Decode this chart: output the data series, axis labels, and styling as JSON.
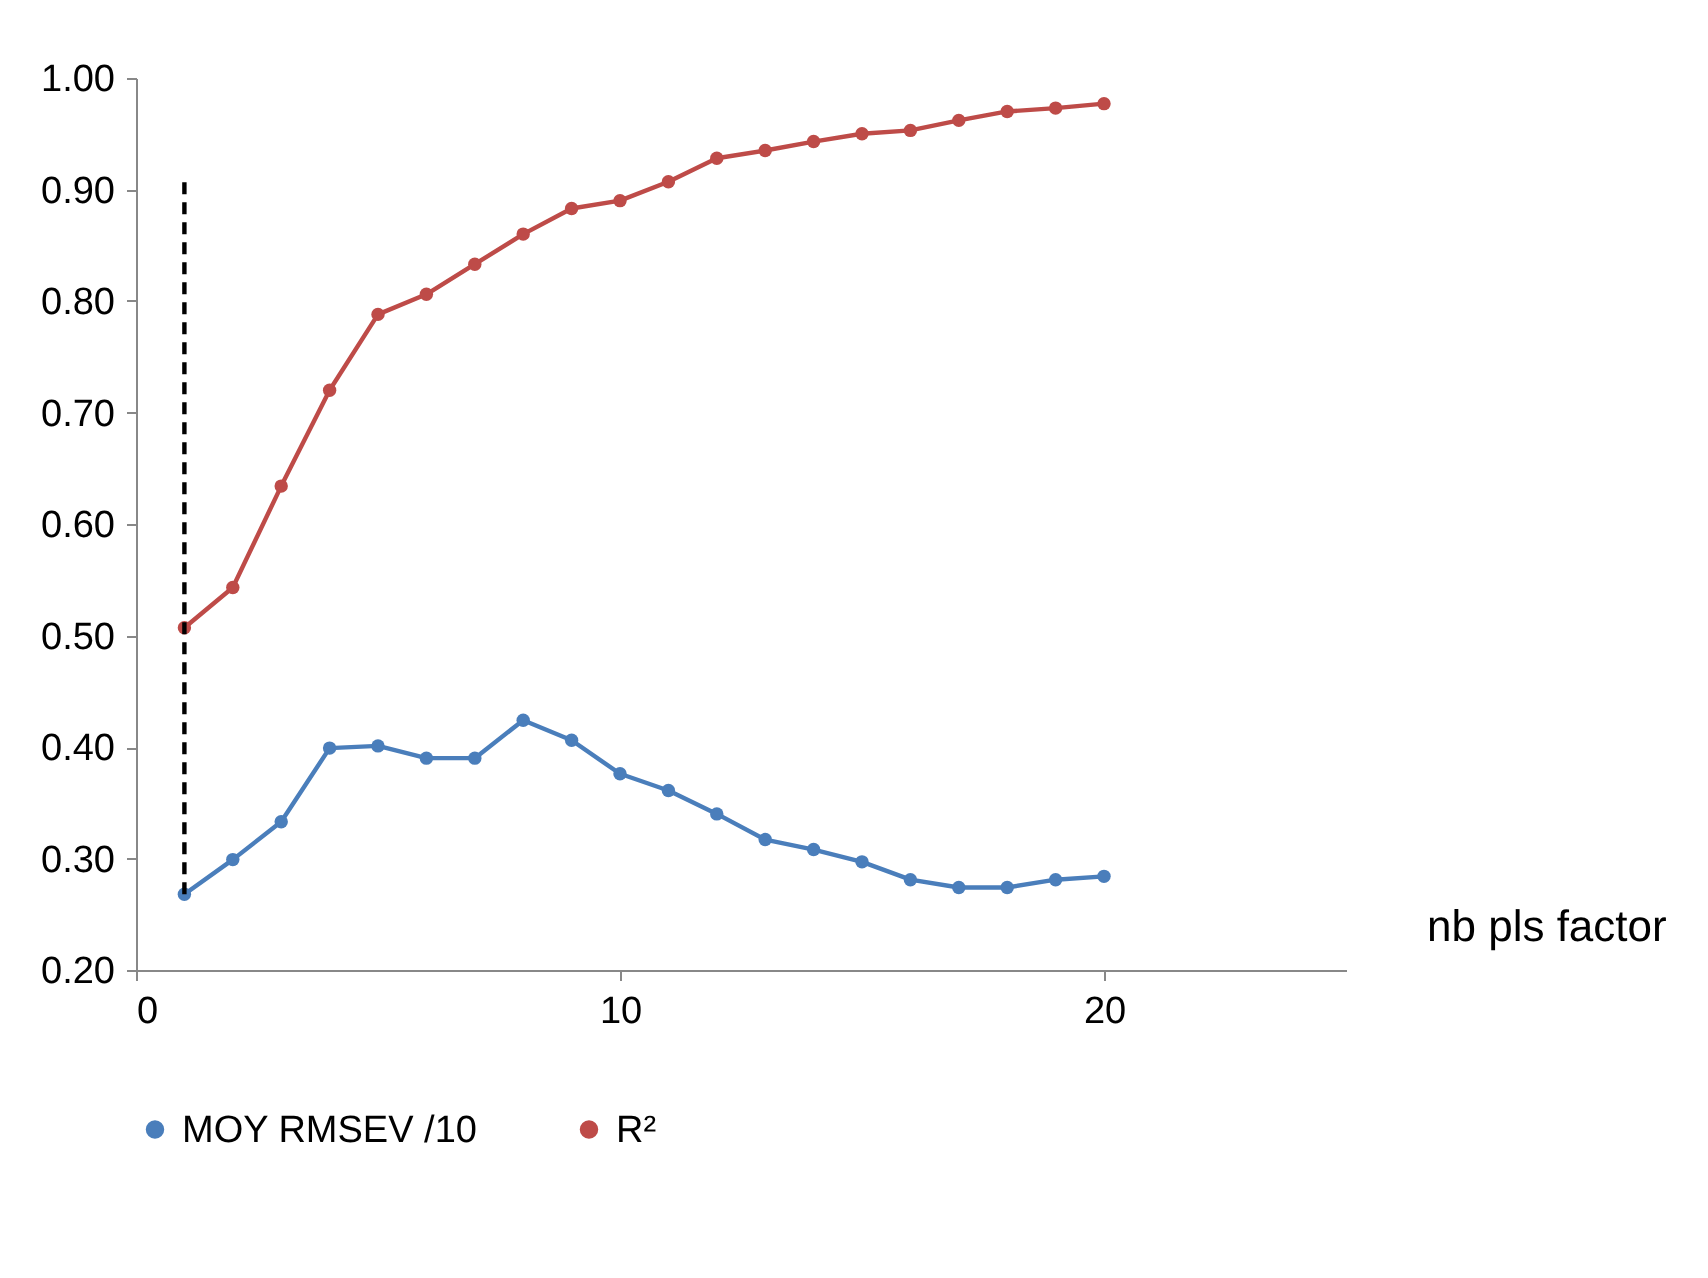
{
  "chart_data": {
    "type": "line",
    "xlabel": "nb pls factor",
    "x": [
      1,
      2,
      3,
      4,
      5,
      6,
      7,
      8,
      9,
      10,
      11,
      12,
      13,
      14,
      15,
      16,
      17,
      18,
      19,
      20
    ],
    "series": [
      {
        "name": "MOY RMSEV  /10",
        "color": "#4a7ebb",
        "values": [
          0.268,
          0.299,
          0.333,
          0.399,
          0.401,
          0.39,
          0.39,
          0.424,
          0.406,
          0.376,
          0.361,
          0.34,
          0.317,
          0.308,
          0.297,
          0.281,
          0.274,
          0.274,
          0.281,
          0.284
        ]
      },
      {
        "name": "R²",
        "color": "#be4b48",
        "values": [
          0.507,
          0.543,
          0.634,
          0.72,
          0.788,
          0.806,
          0.833,
          0.86,
          0.883,
          0.89,
          0.907,
          0.928,
          0.935,
          0.943,
          0.95,
          0.953,
          0.962,
          0.97,
          0.973,
          0.977
        ]
      },
      {
        "type": "line",
        "color": "#000000",
        "x": [
          1,
          1
        ],
        "values": [
          0.268,
          0.91
        ],
        "line_style": "dashed",
        "marker": "none"
      }
    ],
    "xlim": [
      0,
      25
    ],
    "xticks": [
      0,
      10,
      20
    ],
    "ylim": [
      0.2,
      1.0
    ],
    "yticks": [
      {
        "value": 0.2,
        "label": "0.20"
      },
      {
        "value": 0.3,
        "label": "0.30"
      },
      {
        "value": 0.4,
        "label": "0.40"
      },
      {
        "value": 0.5,
        "label": "0.50"
      },
      {
        "value": 0.6,
        "label": "0.60"
      },
      {
        "value": 0.7,
        "label": "0.70"
      },
      {
        "value": 0.8,
        "label": "0.80"
      },
      {
        "value": 0.9,
        "label": "0.90"
      },
      {
        "value": 1.0,
        "label": "1.00"
      }
    ],
    "grid": false,
    "legend": "bottom",
    "marker": "circle",
    "line_style": "solid"
  }
}
